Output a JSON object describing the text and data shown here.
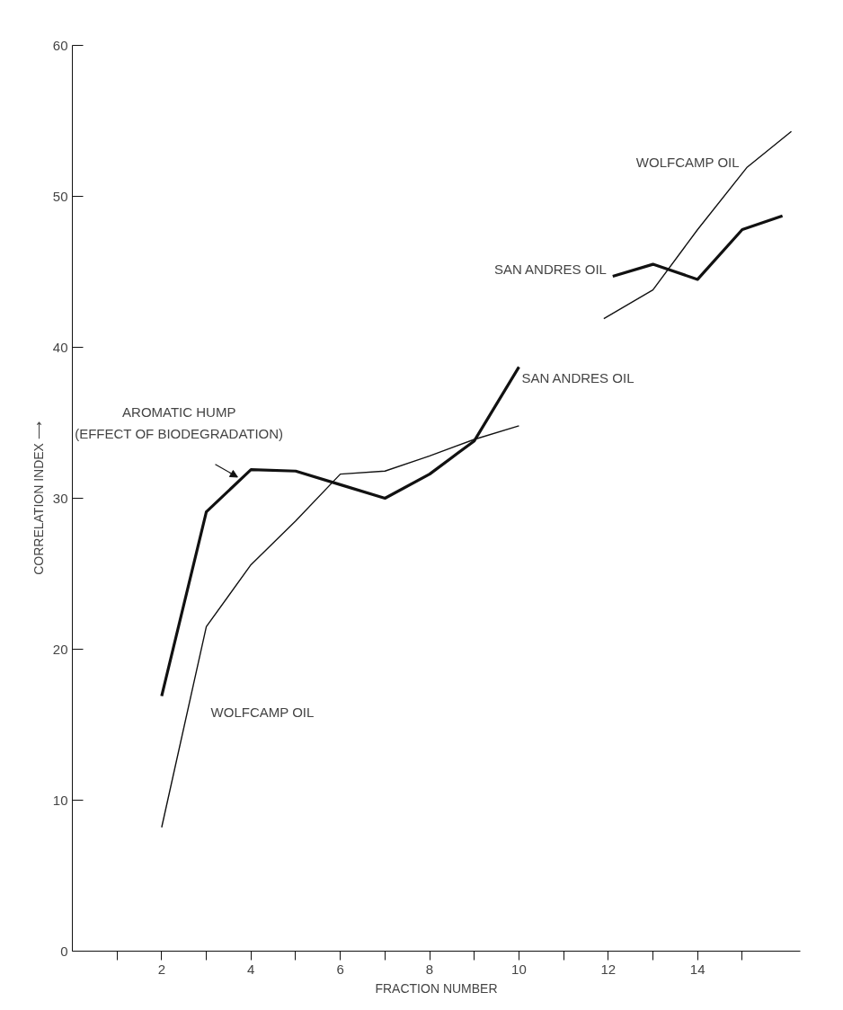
{
  "chart_data": {
    "type": "line",
    "xlabel": "FRACTION NUMBER",
    "ylabel": "CORRELATION INDEX ⟶",
    "xlim": [
      0,
      16.3
    ],
    "ylim": [
      0,
      60
    ],
    "xticks": [
      {
        "value": 1,
        "label": null
      },
      2,
      {
        "value": 3,
        "label": null
      },
      4,
      {
        "value": 5,
        "label": null
      },
      6,
      {
        "value": 7,
        "label": null
      },
      8,
      {
        "value": 9,
        "label": null
      },
      10,
      {
        "value": 11,
        "label": null
      },
      12,
      {
        "value": 13,
        "label": null
      },
      14,
      {
        "value": 15,
        "label": null
      }
    ],
    "yticks": [
      0,
      10,
      20,
      30,
      40,
      50,
      60
    ],
    "grid": false,
    "marker": "none",
    "line_style": "solid",
    "series": [
      {
        "color": "#111111",
        "x": [
          2,
          3,
          4,
          5,
          6,
          7,
          8,
          9,
          10,
          11,
          12.1,
          13,
          14,
          15,
          15.9
        ],
        "values": [
          16.9,
          29.1,
          31.9,
          31.8,
          30.9,
          30.0,
          31.6,
          33.8,
          38.7,
          null,
          44.7,
          45.5,
          44.5,
          47.8,
          48.7
        ]
      },
      {
        "color": "#111111",
        "x": [
          2,
          3,
          4,
          5,
          6,
          7,
          8,
          9,
          10,
          11,
          11.9,
          13,
          14,
          15.1,
          16.1
        ],
        "values": [
          8.2,
          21.5,
          25.6,
          28.5,
          31.6,
          31.8,
          32.8,
          33.9,
          34.8,
          null,
          41.9,
          43.8,
          47.8,
          51.9,
          54.3
        ]
      }
    ],
    "annotations": [
      {
        "text": "AROMATIC HUMP\n(EFFECT OF BIODEGRADATION)",
        "x": 4,
        "y": 31.9
      },
      "WOLFCAMP OIL",
      "SAN ANDRES OIL",
      "SAN ANDRES OIL",
      "WOLFCAMP OIL"
    ]
  }
}
